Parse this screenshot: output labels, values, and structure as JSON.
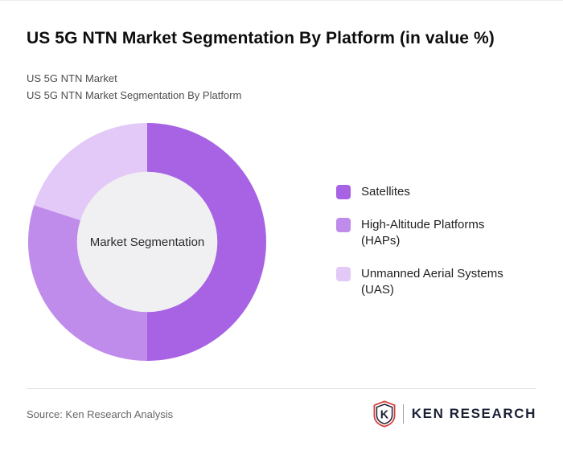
{
  "title": "US 5G NTN Market Segmentation By Platform (in value %)",
  "subtitle_lines": [
    "US 5G NTN Market",
    "US 5G NTN Market Segmentation By Platform"
  ],
  "chart_data": {
    "type": "pie",
    "donut": true,
    "center_label": "Market Segmentation",
    "center_color": "#f0eff2",
    "start_angle_deg": 0,
    "inner_radius_ratio": 0.59,
    "legend_position": "right",
    "series": [
      {
        "name": "Satellites",
        "value": 50,
        "color": "#a763e3"
      },
      {
        "name": "High-Altitude Platforms (HAPs)",
        "value": 30,
        "color": "#c08cec"
      },
      {
        "name": "Unmanned Aerial Systems (UAS)",
        "value": 20,
        "color": "#e3c9f8"
      }
    ]
  },
  "footer": {
    "source": "Source: Ken Research Analysis",
    "logo_text": "KEN RESEARCH",
    "logo_letter": "K",
    "logo_red": "#d6403c",
    "logo_navy": "#1b2135"
  }
}
